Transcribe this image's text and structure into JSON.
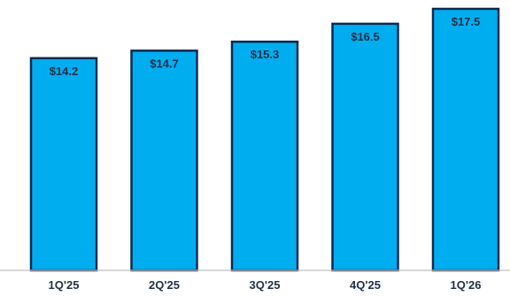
{
  "chart_data": {
    "type": "bar",
    "title": "",
    "xlabel": "",
    "ylabel": "",
    "categories": [
      "1Q'25",
      "2Q'25",
      "3Q'25",
      "4Q'25",
      "1Q'26"
    ],
    "values": [
      14.2,
      14.7,
      15.3,
      16.5,
      17.5
    ],
    "value_labels": [
      "$14.2",
      "$14.7",
      "$15.3",
      "$16.5",
      "$17.5"
    ],
    "ylim": [
      0,
      17.5
    ],
    "grid": false,
    "legend": "none",
    "colors": {
      "bar_fill": "#00aeef",
      "bar_stroke": "#0d2a52",
      "text": "#1f2f4a"
    }
  }
}
